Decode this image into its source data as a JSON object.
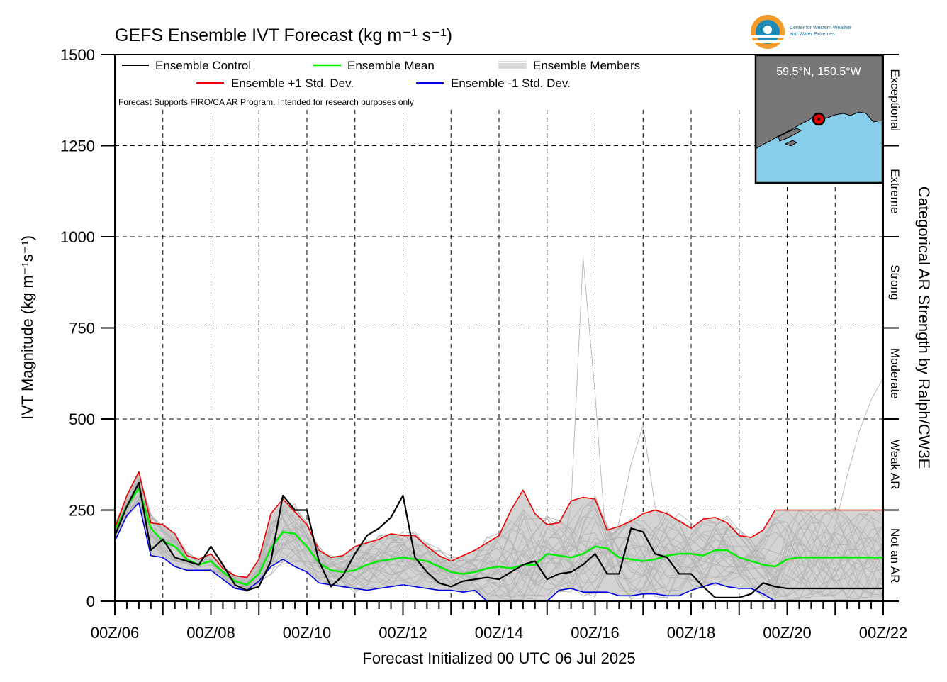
{
  "chart_data": {
    "type": "line",
    "title": "GEFS Ensemble IVT Forecast (kg m⁻¹ s⁻¹)",
    "xlabel": "Forecast Initialized 00 UTC 06 Jul 2025",
    "ylabel": "IVT Magnitude (kg m⁻¹s⁻¹)",
    "right_axis_label": "Categorical AR Strength by Ralph/CW3E",
    "ylim": [
      0,
      1500
    ],
    "xlim_days": [
      0,
      16
    ],
    "x_tick_labels": [
      "00Z/06",
      "00Z/08",
      "00Z/10",
      "00Z/12",
      "00Z/14",
      "00Z/16",
      "00Z/18",
      "00Z/20",
      "00Z/22"
    ],
    "y_tick_labels": [
      "0",
      "250",
      "500",
      "750",
      "1000",
      "1250",
      "1500"
    ],
    "categories_ar": [
      "Not an AR",
      "Weak AR",
      "Moderate",
      "Strong",
      "Extreme",
      "Exceptional"
    ],
    "note": "Forecast Supports FIRO/CA AR Program. Intended for research purposes only",
    "location": "59.5°N, 150.5°W",
    "logo_text": [
      "Center for Western Weather",
      "and Water Extremes"
    ],
    "grid": true,
    "legend_position": "top-left",
    "legend": {
      "control": "Ensemble Control",
      "mean": "Ensemble Mean",
      "members": "Ensemble Members",
      "plus": "Ensemble +1 Std. Dev.",
      "minus": "Ensemble -1 Std. Dev."
    },
    "colors": {
      "control": "#000000",
      "mean": "#00ee00",
      "plus": "#ee0000",
      "minus": "#0000dd",
      "members": "#b4b4b4",
      "spread": "#d3d3d3",
      "land": "#777777",
      "ocean": "#87ceeb"
    },
    "x_days": [
      0,
      0.25,
      0.5,
      0.75,
      1,
      1.25,
      1.5,
      1.75,
      2,
      2.25,
      2.5,
      2.75,
      3,
      3.25,
      3.5,
      3.75,
      4,
      4.25,
      4.5,
      4.75,
      5,
      5.25,
      5.5,
      5.75,
      6,
      6.25,
      6.5,
      6.75,
      7,
      7.25,
      7.5,
      7.75,
      8,
      8.25,
      8.5,
      8.75,
      9,
      9.25,
      9.5,
      9.75,
      10,
      10.25,
      10.5,
      10.75,
      11,
      11.25,
      11.5,
      11.75,
      12,
      12.25,
      12.5,
      12.75,
      13,
      13.25,
      13.5,
      13.75,
      14,
      14.25,
      14.5,
      14.75,
      15,
      15.25,
      15.5,
      15.75,
      16
    ],
    "series": [
      {
        "name": "Ensemble Control",
        "values": [
          180,
          260,
          325,
          140,
          170,
          120,
          110,
          100,
          150,
          100,
          45,
          30,
          40,
          110,
          290,
          250,
          250,
          110,
          40,
          70,
          130,
          180,
          200,
          230,
          290,
          120,
          80,
          50,
          40,
          55,
          60,
          65,
          60,
          80,
          100,
          110,
          60,
          75,
          80,
          100,
          130,
          75,
          75,
          200,
          190,
          130,
          120,
          75,
          75,
          40,
          10,
          10,
          10,
          20,
          50,
          40,
          35,
          35,
          35,
          35,
          35,
          35,
          35,
          35,
          35
        ]
      },
      {
        "name": "Ensemble Mean",
        "values": [
          195,
          260,
          310,
          200,
          165,
          150,
          115,
          100,
          110,
          80,
          55,
          45,
          75,
          145,
          190,
          185,
          150,
          105,
          85,
          80,
          85,
          100,
          110,
          115,
          120,
          115,
          110,
          95,
          80,
          75,
          80,
          90,
          95,
          90,
          100,
          100,
          130,
          125,
          120,
          130,
          150,
          145,
          120,
          115,
          110,
          115,
          125,
          130,
          130,
          125,
          140,
          140,
          120,
          110,
          100,
          95,
          115,
          120,
          120,
          120,
          120,
          120,
          120,
          120,
          120
        ]
      },
      {
        "name": "Ensemble +1 Std. Dev.",
        "values": [
          200,
          290,
          355,
          215,
          210,
          185,
          125,
          115,
          130,
          90,
          70,
          65,
          115,
          240,
          280,
          245,
          210,
          140,
          120,
          125,
          150,
          160,
          170,
          185,
          180,
          180,
          150,
          125,
          110,
          125,
          140,
          160,
          180,
          250,
          305,
          240,
          210,
          215,
          275,
          285,
          280,
          195,
          205,
          220,
          240,
          250,
          240,
          220,
          200,
          225,
          230,
          215,
          180,
          175,
          195,
          250,
          250,
          250,
          250,
          250,
          250,
          250,
          250,
          250,
          250
        ]
      },
      {
        "name": "Ensemble -1 Std. Dev.",
        "values": [
          165,
          235,
          270,
          125,
          120,
          95,
          85,
          85,
          85,
          60,
          35,
          30,
          55,
          95,
          115,
          95,
          80,
          50,
          45,
          40,
          35,
          30,
          35,
          40,
          45,
          40,
          35,
          30,
          30,
          25,
          30,
          0,
          0,
          0,
          0,
          0,
          0,
          30,
          35,
          25,
          25,
          25,
          15,
          15,
          20,
          20,
          15,
          15,
          30,
          40,
          50,
          40,
          35,
          35,
          20,
          0,
          0,
          0,
          0,
          0,
          0,
          0,
          0,
          0,
          0
        ]
      }
    ]
  }
}
